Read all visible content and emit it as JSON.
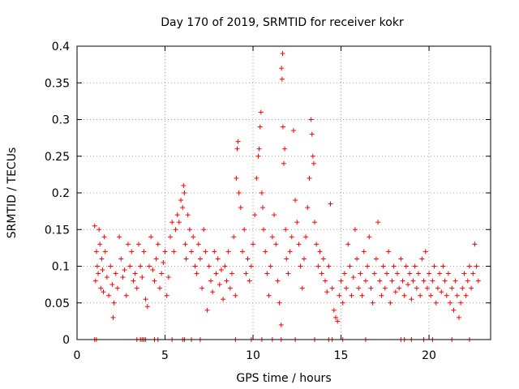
{
  "chart_data": {
    "type": "scatter",
    "title": "Day 170 of 2019, SRMTID for receiver kokr",
    "xlabel": "GPS time / hours",
    "ylabel": "SRMTID / TECUs",
    "xlim": [
      0,
      23.5
    ],
    "ylim": [
      0,
      0.4
    ],
    "xticks": [
      0,
      5,
      10,
      15,
      20
    ],
    "xtick_labels": [
      "0",
      "5",
      "10",
      "15",
      "20"
    ],
    "yticks": [
      0,
      0.05,
      0.1,
      0.15,
      0.2,
      0.25,
      0.3,
      0.35,
      0.4
    ],
    "ytick_labels": [
      "0",
      "0.05",
      "0.1",
      "0.15",
      "0.2",
      "0.25",
      "0.3",
      "0.35",
      "0.4"
    ],
    "grid": true,
    "marker": "plus",
    "color": "#ff0000",
    "series": [
      {
        "name": "SRMTID",
        "points": [
          [
            1.0,
            0.155
          ],
          [
            1.05,
            0.08
          ],
          [
            1.1,
            0.12
          ],
          [
            1.15,
            0.1
          ],
          [
            1.2,
            0.09
          ],
          [
            1.25,
            0.15
          ],
          [
            1.3,
            0.13
          ],
          [
            1.35,
            0.07
          ],
          [
            1.4,
            0.11
          ],
          [
            1.45,
            0.095
          ],
          [
            1.5,
            0.065
          ],
          [
            1.55,
            0.14
          ],
          [
            1.6,
            0.12
          ],
          [
            1.7,
            0.085
          ],
          [
            1.8,
            0.06
          ],
          [
            1.9,
            0.1
          ],
          [
            2.0,
            0.075
          ],
          [
            2.05,
            0.03
          ],
          [
            2.1,
            0.05
          ],
          [
            2.2,
            0.09
          ],
          [
            2.3,
            0.07
          ],
          [
            2.4,
            0.14
          ],
          [
            2.5,
            0.11
          ],
          [
            2.6,
            0.085
          ],
          [
            2.7,
            0.095
          ],
          [
            2.8,
            0.06
          ],
          [
            2.9,
            0.13
          ],
          [
            3.0,
            0.1
          ],
          [
            3.1,
            0.12
          ],
          [
            3.2,
            0.08
          ],
          [
            3.3,
            0.09
          ],
          [
            3.4,
            0.07
          ],
          [
            3.5,
            0.13
          ],
          [
            3.6,
            0.1
          ],
          [
            3.7,
            0.085
          ],
          [
            3.8,
            0.12
          ],
          [
            3.9,
            0.055
          ],
          [
            4.0,
            0.045
          ],
          [
            4.1,
            0.1
          ],
          [
            4.2,
            0.14
          ],
          [
            4.3,
            0.095
          ],
          [
            4.4,
            0.08
          ],
          [
            4.5,
            0.11
          ],
          [
            4.6,
            0.13
          ],
          [
            4.7,
            0.07
          ],
          [
            4.8,
            0.09
          ],
          [
            4.9,
            0.105
          ],
          [
            5.0,
            0.12
          ],
          [
            5.1,
            0.06
          ],
          [
            5.2,
            0.085
          ],
          [
            5.3,
            0.14
          ],
          [
            5.4,
            0.16
          ],
          [
            5.5,
            0.12
          ],
          [
            5.6,
            0.15
          ],
          [
            5.7,
            0.17
          ],
          [
            5.8,
            0.16
          ],
          [
            5.9,
            0.19
          ],
          [
            6.0,
            0.18
          ],
          [
            6.05,
            0.21
          ],
          [
            6.1,
            0.2
          ],
          [
            6.15,
            0.13
          ],
          [
            6.2,
            0.11
          ],
          [
            6.3,
            0.17
          ],
          [
            6.4,
            0.15
          ],
          [
            6.5,
            0.12
          ],
          [
            6.6,
            0.14
          ],
          [
            6.7,
            0.1
          ],
          [
            6.8,
            0.09
          ],
          [
            6.9,
            0.13
          ],
          [
            7.0,
            0.11
          ],
          [
            7.1,
            0.07
          ],
          [
            7.2,
            0.15
          ],
          [
            7.3,
            0.12
          ],
          [
            7.4,
            0.04
          ],
          [
            7.5,
            0.1
          ],
          [
            7.6,
            0.08
          ],
          [
            7.7,
            0.065
          ],
          [
            7.8,
            0.12
          ],
          [
            7.9,
            0.09
          ],
          [
            8.0,
            0.11
          ],
          [
            8.1,
            0.075
          ],
          [
            8.2,
            0.095
          ],
          [
            8.3,
            0.055
          ],
          [
            8.4,
            0.1
          ],
          [
            8.5,
            0.08
          ],
          [
            8.6,
            0.12
          ],
          [
            8.7,
            0.07
          ],
          [
            8.8,
            0.09
          ],
          [
            8.9,
            0.14
          ],
          [
            9.0,
            0.06
          ],
          [
            9.05,
            0.22
          ],
          [
            9.1,
            0.26
          ],
          [
            9.15,
            0.27
          ],
          [
            9.2,
            0.2
          ],
          [
            9.3,
            0.18
          ],
          [
            9.4,
            0.12
          ],
          [
            9.5,
            0.15
          ],
          [
            9.6,
            0.09
          ],
          [
            9.7,
            0.11
          ],
          [
            9.8,
            0.08
          ],
          [
            9.9,
            0.1
          ],
          [
            10.0,
            0.13
          ],
          [
            10.1,
            0.17
          ],
          [
            10.2,
            0.22
          ],
          [
            10.3,
            0.25
          ],
          [
            10.35,
            0.26
          ],
          [
            10.4,
            0.29
          ],
          [
            10.45,
            0.31
          ],
          [
            10.5,
            0.2
          ],
          [
            10.55,
            0.18
          ],
          [
            10.6,
            0.15
          ],
          [
            10.7,
            0.12
          ],
          [
            10.8,
            0.09
          ],
          [
            10.9,
            0.06
          ],
          [
            11.0,
            0.1
          ],
          [
            11.1,
            0.14
          ],
          [
            11.2,
            0.17
          ],
          [
            11.3,
            0.13
          ],
          [
            11.4,
            0.08
          ],
          [
            11.5,
            0.05
          ],
          [
            11.6,
            0.02
          ],
          [
            11.62,
            0.37
          ],
          [
            11.65,
            0.355
          ],
          [
            11.68,
            0.39
          ],
          [
            11.7,
            0.29
          ],
          [
            11.75,
            0.24
          ],
          [
            11.8,
            0.26
          ],
          [
            11.85,
            0.15
          ],
          [
            11.9,
            0.11
          ],
          [
            12.0,
            0.09
          ],
          [
            12.1,
            0.12
          ],
          [
            12.2,
            0.14
          ],
          [
            12.3,
            0.285
          ],
          [
            12.4,
            0.19
          ],
          [
            12.5,
            0.16
          ],
          [
            12.6,
            0.13
          ],
          [
            12.7,
            0.1
          ],
          [
            12.8,
            0.07
          ],
          [
            12.9,
            0.11
          ],
          [
            13.0,
            0.14
          ],
          [
            13.1,
            0.18
          ],
          [
            13.2,
            0.22
          ],
          [
            13.3,
            0.3
          ],
          [
            13.35,
            0.28
          ],
          [
            13.4,
            0.25
          ],
          [
            13.45,
            0.24
          ],
          [
            13.5,
            0.16
          ],
          [
            13.6,
            0.13
          ],
          [
            13.7,
            0.1
          ],
          [
            13.8,
            0.12
          ],
          [
            13.9,
            0.09
          ],
          [
            14.0,
            0.11
          ],
          [
            14.1,
            0.08
          ],
          [
            14.2,
            0.065
          ],
          [
            14.3,
            0.1
          ],
          [
            14.4,
            0.185
          ],
          [
            14.5,
            0.07
          ],
          [
            14.6,
            0.04
          ],
          [
            14.7,
            0.03
          ],
          [
            14.8,
            0.025
          ],
          [
            14.9,
            0.06
          ],
          [
            15.0,
            0.08
          ],
          [
            15.1,
            0.05
          ],
          [
            15.2,
            0.09
          ],
          [
            15.3,
            0.07
          ],
          [
            15.4,
            0.13
          ],
          [
            15.5,
            0.1
          ],
          [
            15.6,
            0.06
          ],
          [
            15.7,
            0.085
          ],
          [
            15.8,
            0.15
          ],
          [
            15.9,
            0.11
          ],
          [
            16.0,
            0.07
          ],
          [
            16.1,
            0.09
          ],
          [
            16.2,
            0.06
          ],
          [
            16.3,
            0.12
          ],
          [
            16.4,
            0.08
          ],
          [
            16.5,
            0.1
          ],
          [
            16.6,
            0.14
          ],
          [
            16.7,
            0.07
          ],
          [
            16.8,
            0.05
          ],
          [
            16.9,
            0.09
          ],
          [
            17.0,
            0.11
          ],
          [
            17.1,
            0.16
          ],
          [
            17.2,
            0.08
          ],
          [
            17.3,
            0.06
          ],
          [
            17.4,
            0.1
          ],
          [
            17.5,
            0.07
          ],
          [
            17.6,
            0.09
          ],
          [
            17.7,
            0.12
          ],
          [
            17.8,
            0.05
          ],
          [
            17.9,
            0.08
          ],
          [
            18.0,
            0.1
          ],
          [
            18.1,
            0.065
          ],
          [
            18.2,
            0.09
          ],
          [
            18.3,
            0.07
          ],
          [
            18.4,
            0.11
          ],
          [
            18.5,
            0.08
          ],
          [
            18.6,
            0.06
          ],
          [
            18.7,
            0.1
          ],
          [
            18.8,
            0.075
          ],
          [
            18.9,
            0.09
          ],
          [
            19.0,
            0.055
          ],
          [
            19.1,
            0.08
          ],
          [
            19.2,
            0.1
          ],
          [
            19.3,
            0.07
          ],
          [
            19.4,
            0.09
          ],
          [
            19.5,
            0.06
          ],
          [
            19.6,
            0.11
          ],
          [
            19.7,
            0.08
          ],
          [
            19.8,
            0.12
          ],
          [
            19.9,
            0.07
          ],
          [
            20.0,
            0.09
          ],
          [
            20.1,
            0.06
          ],
          [
            20.2,
            0.08
          ],
          [
            20.3,
            0.1
          ],
          [
            20.4,
            0.05
          ],
          [
            20.5,
            0.07
          ],
          [
            20.6,
            0.09
          ],
          [
            20.7,
            0.065
          ],
          [
            20.8,
            0.1
          ],
          [
            20.9,
            0.08
          ],
          [
            21.0,
            0.06
          ],
          [
            21.1,
            0.09
          ],
          [
            21.2,
            0.05
          ],
          [
            21.3,
            0.07
          ],
          [
            21.4,
            0.04
          ],
          [
            21.5,
            0.08
          ],
          [
            21.6,
            0.06
          ],
          [
            21.7,
            0.03
          ],
          [
            21.8,
            0.05
          ],
          [
            21.9,
            0.07
          ],
          [
            22.0,
            0.09
          ],
          [
            22.1,
            0.06
          ],
          [
            22.2,
            0.08
          ],
          [
            22.3,
            0.1
          ],
          [
            22.4,
            0.07
          ],
          [
            22.5,
            0.09
          ],
          [
            22.6,
            0.13
          ],
          [
            22.7,
            0.1
          ],
          [
            22.8,
            0.08
          ]
        ]
      }
    ],
    "zero_markers_x": [
      1.0,
      1.1,
      3.4,
      3.6,
      3.7,
      3.8,
      3.9,
      4.4,
      4.6,
      5.4,
      6.0,
      6.1,
      6.5,
      7.0,
      9.0,
      9.9,
      10.5,
      11.1,
      11.6,
      12.4,
      13.5,
      14.3,
      14.5,
      15.1,
      16.4,
      18.4,
      18.6,
      19.0,
      19.7,
      20.2,
      21.3,
      22.3
    ]
  }
}
